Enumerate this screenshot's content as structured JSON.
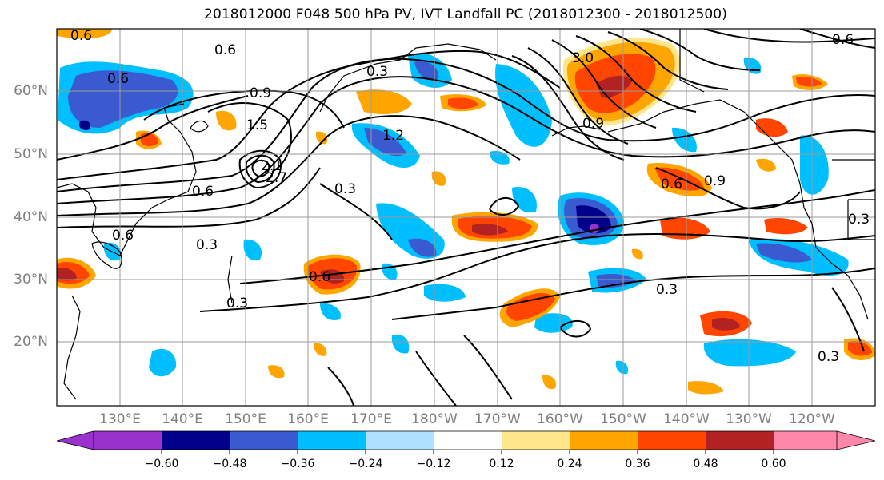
{
  "title": "2018012000 F048 500 hPa PV, IVT Landfall PC (2018012300 - 2018012500)",
  "latitudes": [
    "60°N",
    "50°N",
    "40°N",
    "30°N",
    "20°N"
  ],
  "longitudes": [
    "130°E",
    "140°E",
    "150°E",
    "160°E",
    "170°E",
    "180°W",
    "170°W",
    "160°W",
    "150°W",
    "140°W",
    "130°W",
    "120°W"
  ],
  "colorbar": {
    "ticks": [
      "−0.60",
      "−0.48",
      "−0.36",
      "−0.24",
      "−0.12",
      "0.12",
      "0.24",
      "0.36",
      "0.48",
      "0.60"
    ],
    "colors": [
      "#9932cc",
      "#00008b",
      "#3a5bd0",
      "#00bfff",
      "#b0e0ff",
      "#ffffff",
      "#ffe68a",
      "#ffa500",
      "#ff4500",
      "#b22222",
      "#ff88aa"
    ]
  },
  "contour_labels": [
    "0.6",
    "0.6",
    "0.6",
    "0.6",
    "0.9",
    "1.5",
    "2.1",
    "2.7",
    "0.3",
    "0.3",
    "0.3",
    "0.3",
    "1.2",
    "0.3",
    "3.0",
    "0.9",
    "0.6",
    "0.9",
    "0.3",
    "0.3",
    "0.6",
    "0.6",
    "0.6"
  ]
}
